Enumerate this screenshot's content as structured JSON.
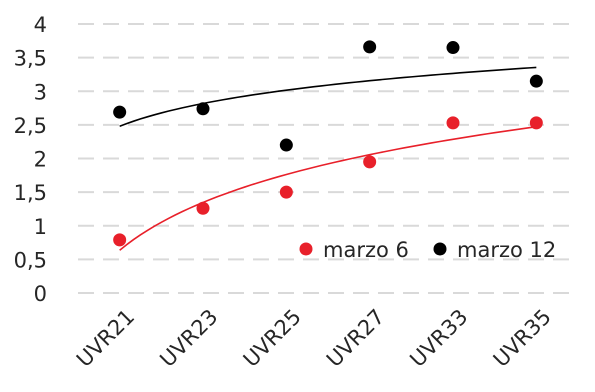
{
  "chart_data": {
    "type": "scatter",
    "title": "",
    "xlabel": "",
    "ylabel": "",
    "categories": [
      "UVR21",
      "UVR23",
      "UVR25",
      "UVR27",
      "UVR33",
      "UVR35"
    ],
    "y_ticks": [
      "0",
      "0,5",
      "1",
      "1,5",
      "2",
      "2,5",
      "3",
      "3,5",
      "4"
    ],
    "ylim": [
      0,
      4
    ],
    "grid": true,
    "legend_position": "bottom-right (inside plot)",
    "series": [
      {
        "name": "marzo 6",
        "color": "#e8202a",
        "values": [
          0.79,
          1.26,
          1.5,
          1.95,
          2.53,
          2.53
        ],
        "trendline": "logarithmic"
      },
      {
        "name": "marzo 12",
        "color": "#000000",
        "values": [
          2.69,
          2.74,
          2.2,
          3.66,
          3.65,
          3.15
        ],
        "trendline": "logarithmic"
      }
    ]
  }
}
